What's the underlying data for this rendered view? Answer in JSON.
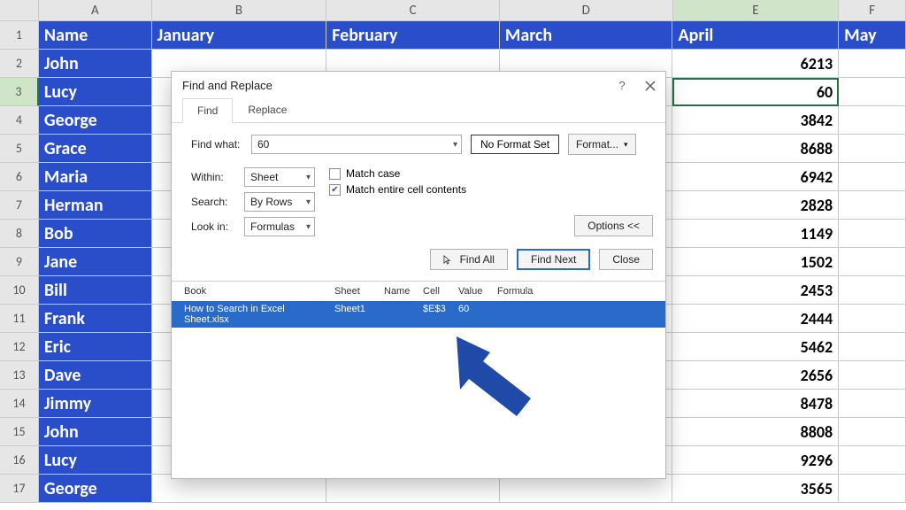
{
  "colors": {
    "brand_blue": "#2a4ec9",
    "dialog_selection": "#2a6ac9",
    "grid_line": "#c9c9c9",
    "header_bg": "#e6e6e6",
    "selected_header": "#cfe4c9",
    "arrow": "#1f4aa8"
  },
  "sheet": {
    "columns": [
      "A",
      "B",
      "C",
      "D",
      "E",
      "F"
    ],
    "selected_col": "E",
    "selected_row": 3,
    "headers": {
      "A": "Name",
      "B": "January",
      "C": "February",
      "D": "March",
      "E": "April",
      "F": "May"
    },
    "rows": [
      {
        "n": 2,
        "name": "John",
        "E": 6213
      },
      {
        "n": 3,
        "name": "Lucy",
        "E": 60
      },
      {
        "n": 4,
        "name": "George",
        "E": 3842
      },
      {
        "n": 5,
        "name": "Grace",
        "E": 8688
      },
      {
        "n": 6,
        "name": "Maria",
        "E": 6942
      },
      {
        "n": 7,
        "name": "Herman",
        "E": 2828
      },
      {
        "n": 8,
        "name": "Bob",
        "E": 1149
      },
      {
        "n": 9,
        "name": "Jane",
        "E": 1502
      },
      {
        "n": 10,
        "name": "Bill",
        "E": 2453
      },
      {
        "n": 11,
        "name": "Frank",
        "E": 2444
      },
      {
        "n": 12,
        "name": "Eric",
        "E": 5462
      },
      {
        "n": 13,
        "name": "Dave",
        "E": 2656
      },
      {
        "n": 14,
        "name": "Jimmy",
        "E": 8478
      },
      {
        "n": 15,
        "name": "John",
        "E": 8808
      },
      {
        "n": 16,
        "name": "Lucy",
        "E": 9296
      },
      {
        "n": 17,
        "name": "George",
        "E": 3565
      }
    ]
  },
  "dialog": {
    "title": "Find and Replace",
    "tabs": {
      "find": "Find",
      "replace": "Replace"
    },
    "find_what_label": "Find what:",
    "find_what_value": "60",
    "no_format": "No Format Set",
    "format_btn": "Format...",
    "within_label": "Within:",
    "within_value": "Sheet",
    "search_label": "Search:",
    "search_value": "By Rows",
    "lookin_label": "Look in:",
    "lookin_value": "Formulas",
    "match_case": "Match case",
    "match_entire": "Match entire cell contents",
    "options_btn": "Options <<",
    "find_all": "Find All",
    "find_next": "Find Next",
    "close": "Close",
    "results": {
      "columns": {
        "book": "Book",
        "sheet": "Sheet",
        "name": "Name",
        "cell": "Cell",
        "value": "Value",
        "formula": "Formula"
      },
      "row": {
        "book": "How to Search in Excel Sheet.xlsx",
        "sheet": "Sheet1",
        "name": "",
        "cell": "$E$3",
        "value": "60",
        "formula": ""
      }
    }
  }
}
